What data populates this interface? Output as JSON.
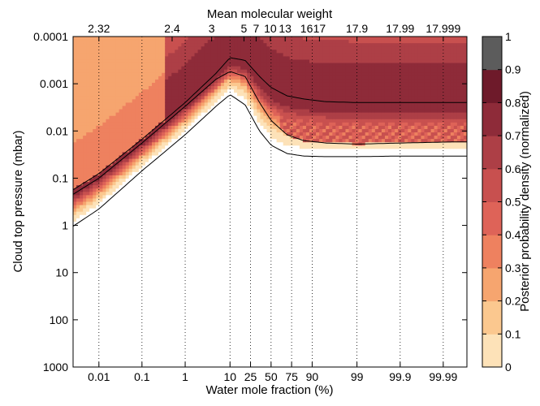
{
  "chart_data": {
    "type": "heatmap",
    "title": "",
    "xlabel": "Water mole fraction (%)",
    "x2label": "Mean molecular weight",
    "ylabel": "Cloud top pressure (mbar)",
    "colorbar_label": "Posterior probability density (normalized)",
    "x_scale": "logit",
    "y_scale": "log",
    "y_reversed": true,
    "ylim": [
      0.0001,
      1000
    ],
    "clim": [
      0,
      1
    ],
    "colorbar_ticks": [
      "0",
      "0.1",
      "0.2",
      "0.3",
      "0.4",
      "0.5",
      "0.6",
      "0.7",
      "0.8",
      "0.9",
      "1"
    ],
    "x_ticks": [
      {
        "label": "0.01",
        "fraction": 0.0001
      },
      {
        "label": "0.1",
        "fraction": 0.001
      },
      {
        "label": "1",
        "fraction": 0.01
      },
      {
        "label": "10",
        "fraction": 0.1
      },
      {
        "label": "25",
        "fraction": 0.25
      },
      {
        "label": "50",
        "fraction": 0.5
      },
      {
        "label": "75",
        "fraction": 0.75
      },
      {
        "label": "90",
        "fraction": 0.9
      },
      {
        "label": "99",
        "fraction": 0.99
      },
      {
        "label": "99.9",
        "fraction": 0.999
      },
      {
        "label": "99.99",
        "fraction": 0.9999
      }
    ],
    "x2_ticks": [
      {
        "label": "2.32",
        "fraction": 0.0001
      },
      {
        "label": "2.4",
        "fraction": 0.005
      },
      {
        "label": "3",
        "fraction": 0.04
      },
      {
        "label": "5",
        "fraction": 0.19
      },
      {
        "label": "7",
        "fraction": 0.31
      },
      {
        "label": "10",
        "fraction": 0.49
      },
      {
        "label": "13",
        "fraction": 0.68
      },
      {
        "label": "16",
        "fraction": 0.87
      },
      {
        "label": "17",
        "fraction": 0.93
      },
      {
        "label": "17.9",
        "fraction": 0.99
      },
      {
        "label": "17.99",
        "fraction": 0.999
      },
      {
        "label": "17.999",
        "fraction": 0.9999
      }
    ],
    "y_ticks": [
      {
        "label": "0.0001",
        "value": 0.0001
      },
      {
        "label": "0.001",
        "value": 0.001
      },
      {
        "label": "0.01",
        "value": 0.01
      },
      {
        "label": "0.1",
        "value": 0.1
      },
      {
        "label": "1",
        "value": 1
      },
      {
        "label": "10",
        "value": 10
      },
      {
        "label": "100",
        "value": 100
      },
      {
        "label": "1000",
        "value": 1000
      }
    ],
    "posterior_ridge": {
      "water_fraction": [
        2e-05,
        0.0001,
        0.001,
        0.01,
        0.05,
        0.1,
        0.2,
        0.35,
        0.5,
        0.7,
        0.85,
        0.95,
        0.99,
        0.999,
        0.99995
      ],
      "peak_pressure": [
        0.2,
        0.08,
        0.015,
        0.0025,
        0.0006,
        0.00028,
        0.00032,
        0.0007,
        0.0012,
        0.0018,
        0.0021,
        0.0024,
        0.0025,
        0.0025,
        0.0025
      ],
      "upper_contour_pressure": [
        0.25,
        0.1,
        0.018,
        0.003,
        0.0008,
        0.00055,
        0.0007,
        0.0025,
        0.006,
        0.012,
        0.016,
        0.018,
        0.019,
        0.018,
        0.017
      ],
      "lower_contour_pressure": [
        1.2,
        0.45,
        0.07,
        0.012,
        0.003,
        0.0017,
        0.0028,
        0.01,
        0.02,
        0.03,
        0.034,
        0.035,
        0.035,
        0.034,
        0.034
      ]
    },
    "colors": {
      "c0": "#ffffff",
      "c0.1": "#fde2b8",
      "c0.2": "#fbc88f",
      "c0.3": "#f6a56f",
      "c0.4": "#ee815f",
      "c0.5": "#de6358",
      "c0.6": "#c8504f",
      "c0.7": "#ad3f46",
      "c0.8": "#8e2b39",
      "c0.9": "#6e1a2a",
      "c1": "#5c5c5c"
    }
  }
}
